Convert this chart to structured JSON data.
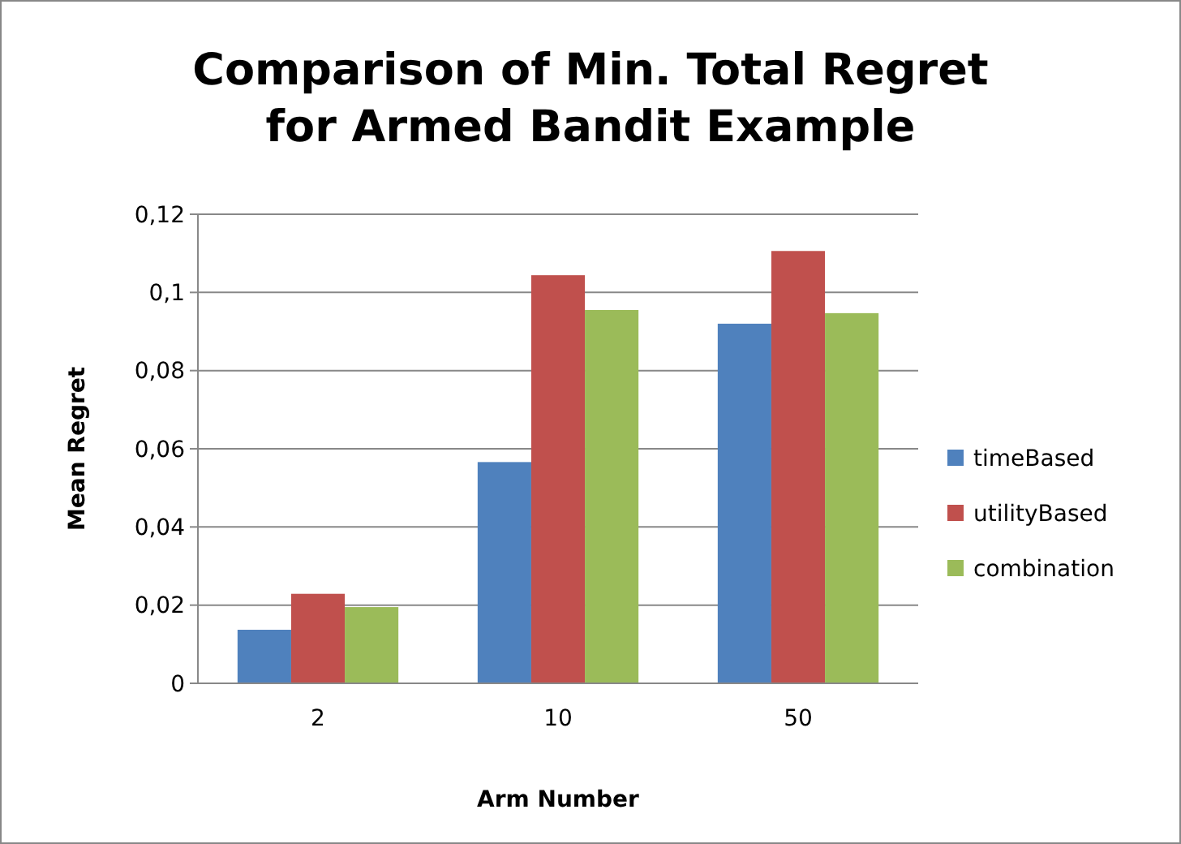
{
  "chart_data": {
    "type": "bar",
    "title": "Comparison of Min. Total Regret\nfor Armed Bandit Example",
    "xlabel": "Arm Number",
    "ylabel": "Mean Regret",
    "categories": [
      "2",
      "10",
      "50"
    ],
    "series": [
      {
        "name": "timeBased",
        "color": "#4f81bd",
        "values": [
          0.0137,
          0.0566,
          0.092
        ]
      },
      {
        "name": "utilityBased",
        "color": "#c0504d",
        "values": [
          0.0229,
          0.1044,
          0.1106
        ]
      },
      {
        "name": "combination",
        "color": "#9bbb59",
        "values": [
          0.0195,
          0.0955,
          0.0947
        ]
      }
    ],
    "ylim": [
      0,
      0.12
    ],
    "yticks": [
      0,
      {
        "value": 0.02,
        "label": "0,02"
      },
      {
        "value": 0.04,
        "label": "0,04"
      },
      {
        "value": 0.06,
        "label": "0,06"
      },
      {
        "value": 0.08,
        "label": "0,08"
      },
      {
        "value": 0.1,
        "label": "0,1"
      },
      {
        "value": 0.12,
        "label": "0,12"
      }
    ],
    "grid": "y",
    "legend": "right"
  }
}
